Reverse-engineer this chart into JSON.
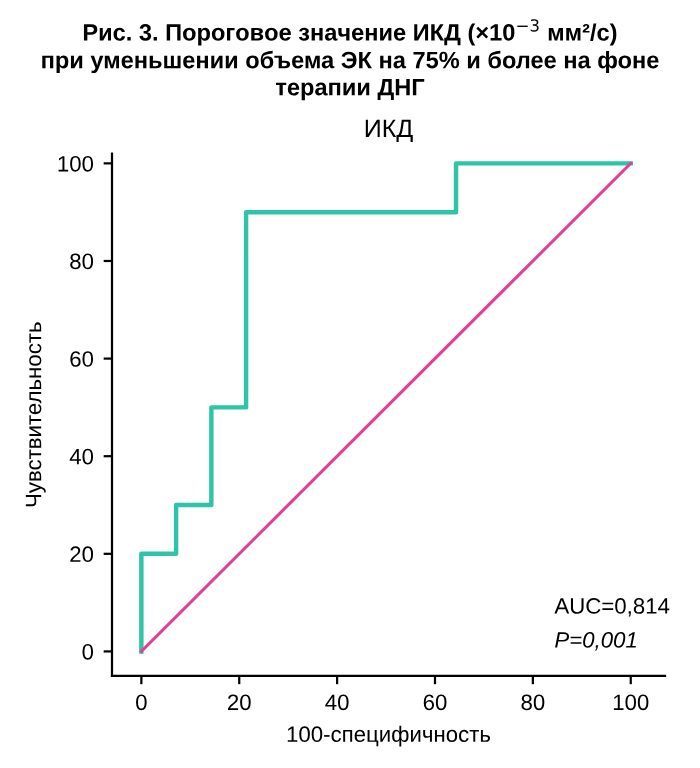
{
  "chart_data": {
    "type": "line",
    "title": "Рис. 3. Пороговое значение ИКД (×10$^{−3}$ мм²/с)\nпри уменьшении объема ЭК на 75% и более на фоне\nтерапии ДНГ",
    "subtitle": "ИКД",
    "xlabel": "100-специфичность",
    "ylabel": "Чувствительность",
    "series": [
      {
        "color": "#2ec4a8",
        "x": [
          0,
          0,
          7.1,
          7.1,
          14.3,
          14.3,
          21.4,
          21.4,
          64.3,
          64.3,
          100
        ],
        "values": [
          0,
          20,
          20,
          30,
          30,
          50,
          50,
          90,
          90,
          100,
          100
        ]
      },
      {
        "color": "#e0409a",
        "x": [
          0,
          100
        ],
        "values": [
          0,
          100
        ]
      }
    ],
    "xlim": [
      -6,
      107
    ],
    "ylim": [
      -5,
      102
    ],
    "xticks": [
      0,
      20,
      40,
      60,
      80,
      100
    ],
    "yticks": [
      0,
      20,
      40,
      60,
      80,
      100
    ],
    "grid": false,
    "legend": false,
    "annotations": [
      "AUC=0,814",
      "P=0,001"
    ]
  }
}
